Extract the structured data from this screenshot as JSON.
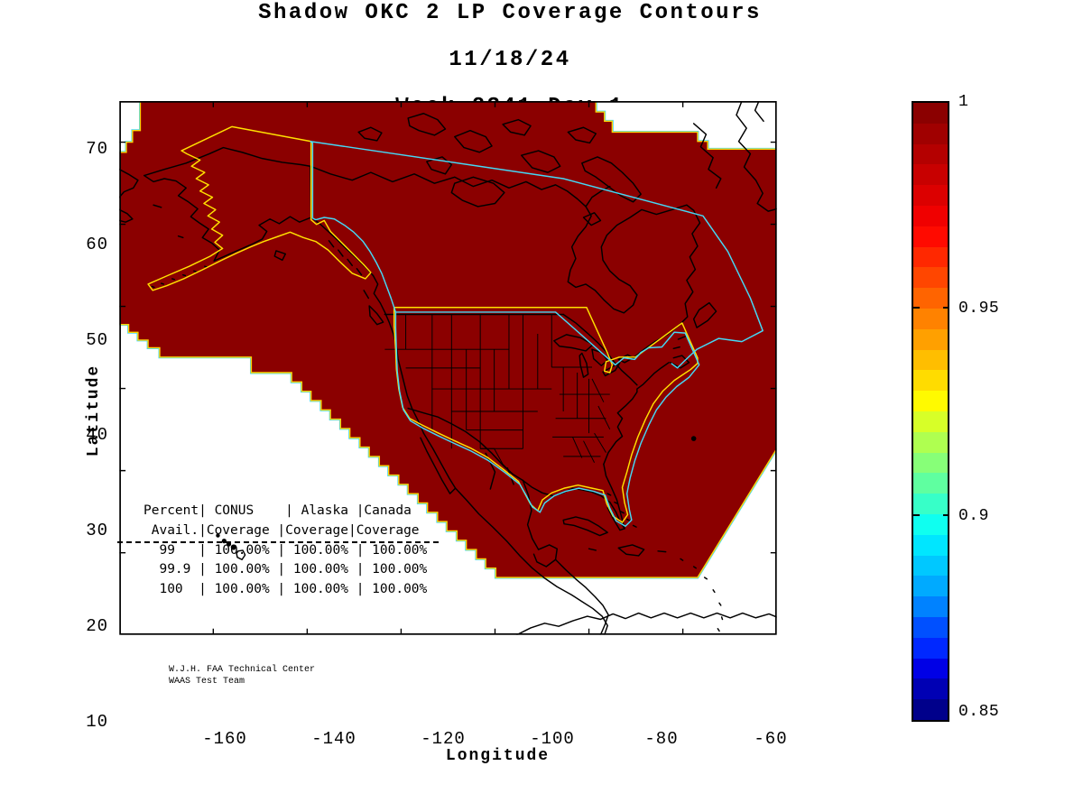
{
  "title": {
    "line1": "Shadow OKC 2 LP Coverage Contours",
    "line2": "11/18/24",
    "line3": "Week 2341 Day 1"
  },
  "axes": {
    "xlabel": "Longitude",
    "ylabel": "Latitude",
    "xlim": [
      -180,
      -40
    ],
    "ylim": [
      10,
      75
    ],
    "xtick_labels": [
      "-160",
      "-140",
      "-120",
      "-100",
      "-80",
      "-60"
    ],
    "xtick_values": [
      -160,
      -140,
      -120,
      -100,
      -80,
      -60
    ],
    "ytick_labels": [
      "10",
      "20",
      "30",
      "40",
      "50",
      "60",
      "70"
    ],
    "ytick_values": [
      10,
      20,
      30,
      40,
      50,
      60,
      70
    ]
  },
  "colorbar": {
    "min": 0.85,
    "max": 1.0,
    "tick_labels": [
      "1",
      "0.95",
      "0.9",
      "0.85"
    ],
    "tick_values": [
      1.0,
      0.95,
      0.9,
      0.85
    ],
    "band_colors_top_to_bottom": [
      "#8B0000",
      "#A00000",
      "#B40000",
      "#C80000",
      "#DC0000",
      "#F00000",
      "#FF0A00",
      "#FF2800",
      "#FF4600",
      "#FF6400",
      "#FF8200",
      "#FFA000",
      "#FFBE00",
      "#FFDC00",
      "#FFFA00",
      "#D7FF28",
      "#AFFF50",
      "#87FF78",
      "#5FFFA0",
      "#37FFC8",
      "#0FFFF0",
      "#00E6FF",
      "#00C8FF",
      "#00AAFF",
      "#0082FF",
      "#0050FF",
      "#0028FF",
      "#0000E6",
      "#0000B4",
      "#00008B"
    ]
  },
  "coverage_table": {
    "lines": [
      "Percent| CONUS    | Alaska |Canada",
      " Avail.|Coverage |Coverage|Coverage",
      "  99   | 100.00% | 100.00% | 100.00%",
      "  99.9 | 100.00% | 100.00% | 100.00%",
      "  100  | 100.00% | 100.00% | 100.00%"
    ]
  },
  "credit": {
    "line1": "W.J.H. FAA Technical Center",
    "line2": "WAAS Test Team"
  },
  "colors": {
    "coverage_fill": "#8B0000",
    "contour_yellow": "#FFE000",
    "contour_cyan": "#45D8F5",
    "coastline": "#000000",
    "background": "#FFFFFF"
  },
  "chart_data": {
    "type": "heatmap",
    "title": "Shadow OKC 2 LP Coverage Contours",
    "subtitle": [
      "11/18/24",
      "Week 2341 Day 1"
    ],
    "xlabel": "Longitude",
    "ylabel": "Latitude",
    "xlim": [
      -180,
      -40
    ],
    "ylim": [
      10,
      75
    ],
    "xticks": [
      -160,
      -140,
      -120,
      -100,
      -80,
      -60
    ],
    "yticks": [
      10,
      20,
      30,
      40,
      50,
      60,
      70
    ],
    "colorbar_range": [
      0.85,
      1.0
    ],
    "colorbar_ticks": [
      1.0,
      0.95,
      0.9,
      0.85
    ],
    "value_in_shaded_region": 1.0,
    "note": "Entire plotted coverage region is at availability contour value 1 (dark red); yellow contour outlines CONUS and Alaska service volumes; cyan contour outlines Canada service volume",
    "table": {
      "columns": [
        "Percent Avail.",
        "CONUS Coverage",
        "Alaska Coverage",
        "Canada Coverage"
      ],
      "rows": [
        [
          "99",
          "100.00%",
          "100.00%",
          "100.00%"
        ],
        [
          "99.9",
          "100.00%",
          "100.00%",
          "100.00%"
        ],
        [
          "100",
          "100.00%",
          "100.00%",
          "100.00%"
        ]
      ]
    }
  }
}
